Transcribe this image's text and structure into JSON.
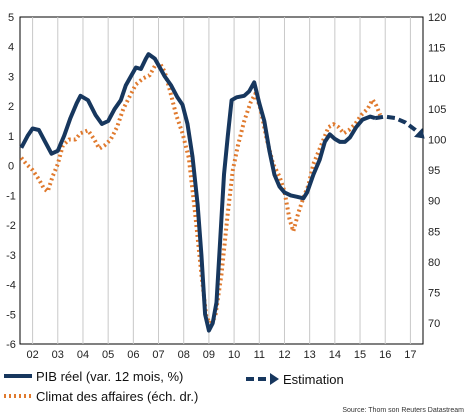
{
  "chart_data": {
    "type": "line",
    "y_left": {
      "range": [
        -6,
        5
      ],
      "ticks": [
        5,
        4,
        3,
        2,
        1,
        0,
        -1,
        -2,
        -3,
        -4,
        -5,
        -6
      ]
    },
    "y_right": {
      "range": [
        66.6,
        120
      ],
      "ticks": [
        120,
        115,
        110,
        105,
        100,
        95,
        90,
        85,
        80,
        75,
        70
      ]
    },
    "x": {
      "range": [
        2001.5,
        2017.5
      ],
      "tick_labels": [
        "02",
        "03",
        "04",
        "05",
        "06",
        "07",
        "08",
        "09",
        "10",
        "11",
        "12",
        "13",
        "14",
        "15",
        "16",
        "17"
      ]
    },
    "grid": "vertical",
    "series": [
      {
        "name": "PIB réel (var. 12 mois, %)",
        "axis": "left",
        "color": "#17375e",
        "style": "solid",
        "points": [
          [
            2001.55,
            0.6
          ],
          [
            2001.8,
            1.0
          ],
          [
            2002.0,
            1.25
          ],
          [
            2002.25,
            1.2
          ],
          [
            2002.5,
            0.8
          ],
          [
            2002.75,
            0.4
          ],
          [
            2003.0,
            0.5
          ],
          [
            2003.25,
            1.0
          ],
          [
            2003.5,
            1.6
          ],
          [
            2003.75,
            2.1
          ],
          [
            2003.9,
            2.35
          ],
          [
            2004.2,
            2.2
          ],
          [
            2004.5,
            1.7
          ],
          [
            2004.75,
            1.4
          ],
          [
            2005.0,
            1.5
          ],
          [
            2005.25,
            1.9
          ],
          [
            2005.5,
            2.2
          ],
          [
            2005.7,
            2.7
          ],
          [
            2005.9,
            3.0
          ],
          [
            2006.1,
            3.3
          ],
          [
            2006.3,
            3.25
          ],
          [
            2006.5,
            3.6
          ],
          [
            2006.6,
            3.75
          ],
          [
            2006.85,
            3.6
          ],
          [
            2007.05,
            3.3
          ],
          [
            2007.25,
            3.0
          ],
          [
            2007.5,
            2.7
          ],
          [
            2007.75,
            2.3
          ],
          [
            2007.95,
            2.05
          ],
          [
            2008.15,
            1.4
          ],
          [
            2008.35,
            0.3
          ],
          [
            2008.55,
            -1.3
          ],
          [
            2008.7,
            -3.0
          ],
          [
            2008.85,
            -5.0
          ],
          [
            2009.0,
            -5.55
          ],
          [
            2009.15,
            -5.3
          ],
          [
            2009.3,
            -4.6
          ],
          [
            2009.45,
            -2.5
          ],
          [
            2009.6,
            -0.3
          ],
          [
            2009.75,
            1.0
          ],
          [
            2009.9,
            2.2
          ],
          [
            2010.1,
            2.3
          ],
          [
            2010.4,
            2.35
          ],
          [
            2010.6,
            2.5
          ],
          [
            2010.8,
            2.8
          ],
          [
            2011.0,
            2.1
          ],
          [
            2011.2,
            1.5
          ],
          [
            2011.4,
            0.5
          ],
          [
            2011.6,
            -0.3
          ],
          [
            2011.8,
            -0.7
          ],
          [
            2012.0,
            -0.9
          ],
          [
            2012.25,
            -1.0
          ],
          [
            2012.5,
            -1.05
          ],
          [
            2012.75,
            -1.1
          ],
          [
            2012.9,
            -0.9
          ],
          [
            2013.15,
            -0.3
          ],
          [
            2013.4,
            0.2
          ],
          [
            2013.6,
            0.8
          ],
          [
            2013.8,
            1.05
          ],
          [
            2014.0,
            0.9
          ],
          [
            2014.2,
            0.8
          ],
          [
            2014.4,
            0.8
          ],
          [
            2014.6,
            0.95
          ],
          [
            2014.85,
            1.3
          ],
          [
            2015.1,
            1.55
          ],
          [
            2015.4,
            1.65
          ],
          [
            2015.6,
            1.6
          ]
        ]
      },
      {
        "name": "Climat des affaires (éch. dr.)",
        "axis": "right",
        "color": "#e07a2e",
        "style": "dotted",
        "points": [
          [
            2001.55,
            97
          ],
          [
            2001.75,
            96
          ],
          [
            2002.0,
            95
          ],
          [
            2002.25,
            93.5
          ],
          [
            2002.45,
            92
          ],
          [
            2002.6,
            91.5
          ],
          [
            2002.8,
            94
          ],
          [
            2003.0,
            96
          ],
          [
            2003.2,
            99
          ],
          [
            2003.45,
            100
          ],
          [
            2003.7,
            100
          ],
          [
            2003.9,
            101
          ],
          [
            2004.2,
            101.5
          ],
          [
            2004.45,
            100
          ],
          [
            2004.65,
            98.5
          ],
          [
            2004.85,
            99
          ],
          [
            2005.1,
            100
          ],
          [
            2005.35,
            102
          ],
          [
            2005.6,
            105
          ],
          [
            2005.85,
            107
          ],
          [
            2006.1,
            109
          ],
          [
            2006.4,
            110
          ],
          [
            2006.65,
            110.5
          ],
          [
            2006.85,
            112
          ],
          [
            2007.05,
            112.5
          ],
          [
            2007.25,
            111
          ],
          [
            2007.45,
            108
          ],
          [
            2007.7,
            104
          ],
          [
            2007.95,
            101
          ],
          [
            2008.2,
            97
          ],
          [
            2008.45,
            88
          ],
          [
            2008.7,
            78
          ],
          [
            2008.9,
            71
          ],
          [
            2009.05,
            70
          ],
          [
            2009.25,
            71
          ],
          [
            2009.5,
            78
          ],
          [
            2009.75,
            88
          ],
          [
            2009.95,
            95
          ],
          [
            2010.15,
            99
          ],
          [
            2010.4,
            103
          ],
          [
            2010.65,
            106
          ],
          [
            2010.85,
            107.5
          ],
          [
            2011.05,
            105
          ],
          [
            2011.3,
            100
          ],
          [
            2011.55,
            96
          ],
          [
            2011.8,
            94
          ],
          [
            2012.0,
            91.5
          ],
          [
            2012.2,
            87
          ],
          [
            2012.35,
            85
          ],
          [
            2012.55,
            88
          ],
          [
            2012.75,
            90.5
          ],
          [
            2012.95,
            92.5
          ],
          [
            2013.15,
            96
          ],
          [
            2013.35,
            98
          ],
          [
            2013.55,
            100
          ],
          [
            2013.75,
            102
          ],
          [
            2013.95,
            102.5
          ],
          [
            2014.15,
            102
          ],
          [
            2014.35,
            101
          ],
          [
            2014.55,
            101.5
          ],
          [
            2014.8,
            102.5
          ],
          [
            2015.05,
            104
          ],
          [
            2015.3,
            105
          ],
          [
            2015.5,
            106.5
          ],
          [
            2015.65,
            105.5
          ],
          [
            2015.8,
            104
          ]
        ]
      },
      {
        "name": "Estimation",
        "axis": "left",
        "color": "#17375e",
        "style": "dashed",
        "points": [
          [
            2015.6,
            1.6
          ],
          [
            2016.0,
            1.65
          ],
          [
            2016.4,
            1.6
          ],
          [
            2016.8,
            1.45
          ],
          [
            2017.2,
            1.2
          ],
          [
            2017.45,
            1.0
          ]
        ]
      }
    ],
    "legend": [
      "PIB réel (var. 12 mois, %)",
      "Climat des affaires (éch. dr.)",
      "Estimation"
    ],
    "legend_position": "bottom",
    "source": "Source: Thom son Reuters Datastream"
  }
}
